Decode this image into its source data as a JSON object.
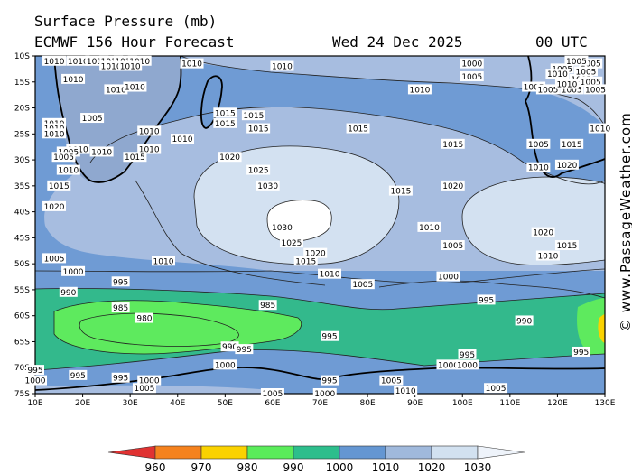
{
  "header": {
    "title": "Surface Pressure (mb)",
    "model": "ECMWF 156 Hour Forecast",
    "date": "Wed 24 Dec 2025",
    "time": "00 UTC"
  },
  "credit": "© www.PassageWeather.com",
  "axes": {
    "lat_labels": [
      "10S",
      "15S",
      "20S",
      "25S",
      "30S",
      "35S",
      "40S",
      "45S",
      "50S",
      "55S",
      "60S",
      "65S",
      "70S",
      "75S"
    ],
    "lon_labels": [
      "10E",
      "20E",
      "30E",
      "40E",
      "50E",
      "60E",
      "70E",
      "80E",
      "90E",
      "100E",
      "110E",
      "120E",
      "130E"
    ]
  },
  "legend": {
    "values": [
      "960",
      "970",
      "980",
      "990",
      "1000",
      "1010",
      "1020",
      "1030"
    ],
    "colors": [
      "#e03232",
      "#f5821e",
      "#fad200",
      "#5aec5a",
      "#2dbe8c",
      "#6496d2",
      "#a0b9dc",
      "#d2e1f0"
    ]
  },
  "isobars": [
    {
      "text": "1010",
      "lon": 14,
      "lat": 11
    },
    {
      "text": "1010",
      "lon": 19,
      "lat": 11
    },
    {
      "text": "1010",
      "lon": 23,
      "lat": 11
    },
    {
      "text": "1010",
      "lon": 26,
      "lat": 11
    },
    {
      "text": "1010",
      "lon": 29,
      "lat": 11
    },
    {
      "text": "1010",
      "lon": 32,
      "lat": 11
    },
    {
      "text": "1010",
      "lon": 26,
      "lat": 12
    },
    {
      "text": "1010",
      "lon": 30,
      "lat": 12
    },
    {
      "text": "1010",
      "lon": 43,
      "lat": 11.5
    },
    {
      "text": "1010",
      "lon": 18,
      "lat": 14.5
    },
    {
      "text": "1010",
      "lon": 27,
      "lat": 16.5
    },
    {
      "text": "1010",
      "lon": 31,
      "lat": 16
    },
    {
      "text": "1010",
      "lon": 62,
      "lat": 12
    },
    {
      "text": "1010",
      "lon": 91,
      "lat": 16.5
    },
    {
      "text": "1000",
      "lon": 102,
      "lat": 11.5
    },
    {
      "text": "1005",
      "lon": 102,
      "lat": 14
    },
    {
      "text": "1005",
      "lon": 115,
      "lat": 16
    },
    {
      "text": "1005",
      "lon": 118,
      "lat": 16.5
    },
    {
      "text": "1005",
      "lon": 121,
      "lat": 12.5
    },
    {
      "text": "1005",
      "lon": 123,
      "lat": 16.5
    },
    {
      "text": "1005",
      "lon": 125,
      "lat": 14.5
    },
    {
      "text": "1005",
      "lon": 127,
      "lat": 15
    },
    {
      "text": "1005",
      "lon": 126,
      "lat": 13
    },
    {
      "text": "1005",
      "lon": 128,
      "lat": 16.5
    },
    {
      "text": "1005",
      "lon": 127,
      "lat": 11.5
    },
    {
      "text": "1010",
      "lon": 120,
      "lat": 13.5
    },
    {
      "text": "1010",
      "lon": 122,
      "lat": 15.5
    },
    {
      "text": "1005",
      "lon": 124,
      "lat": 11
    },
    {
      "text": "1015",
      "lon": 50,
      "lat": 21
    },
    {
      "text": "1015",
      "lon": 50,
      "lat": 23
    },
    {
      "text": "1015",
      "lon": 56,
      "lat": 21.5
    },
    {
      "text": "1015",
      "lon": 57,
      "lat": 24
    },
    {
      "text": "1015",
      "lon": 78,
      "lat": 24
    },
    {
      "text": "1010",
      "lon": 41,
      "lat": 26
    },
    {
      "text": "1010",
      "lon": 14,
      "lat": 23
    },
    {
      "text": "1010",
      "lon": 14,
      "lat": 24
    },
    {
      "text": "1010",
      "lon": 14,
      "lat": 25
    },
    {
      "text": "1005",
      "lon": 22,
      "lat": 22
    },
    {
      "text": "1010",
      "lon": 34,
      "lat": 24.5
    },
    {
      "text": "1010",
      "lon": 19,
      "lat": 28
    },
    {
      "text": "1005",
      "lon": 17,
      "lat": 28.5
    },
    {
      "text": "1005",
      "lon": 16,
      "lat": 29.5
    },
    {
      "text": "1010",
      "lon": 24,
      "lat": 28.5
    },
    {
      "text": "1010",
      "lon": 34,
      "lat": 28
    },
    {
      "text": "1015",
      "lon": 31,
      "lat": 29.5
    },
    {
      "text": "1010",
      "lon": 17,
      "lat": 32
    },
    {
      "text": "1015",
      "lon": 15,
      "lat": 35
    },
    {
      "text": "1020",
      "lon": 14,
      "lat": 39
    },
    {
      "text": "1020",
      "lon": 51,
      "lat": 29.5
    },
    {
      "text": "1025",
      "lon": 57,
      "lat": 32
    },
    {
      "text": "1030",
      "lon": 59,
      "lat": 35
    },
    {
      "text": "1030",
      "lon": 62,
      "lat": 43
    },
    {
      "text": "1025",
      "lon": 64,
      "lat": 46
    },
    {
      "text": "1020",
      "lon": 69,
      "lat": 48
    },
    {
      "text": "1015",
      "lon": 67,
      "lat": 49.5
    },
    {
      "text": "1010",
      "lon": 72,
      "lat": 52
    },
    {
      "text": "1015",
      "lon": 87,
      "lat": 36
    },
    {
      "text": "1010",
      "lon": 93,
      "lat": 43
    },
    {
      "text": "1005",
      "lon": 98,
      "lat": 46.5
    },
    {
      "text": "1005",
      "lon": 79,
      "lat": 54
    },
    {
      "text": "1000",
      "lon": 97,
      "lat": 52.5
    },
    {
      "text": "1015",
      "lon": 98,
      "lat": 27
    },
    {
      "text": "1020",
      "lon": 98,
      "lat": 35
    },
    {
      "text": "1005",
      "lon": 116,
      "lat": 27
    },
    {
      "text": "1010",
      "lon": 116,
      "lat": 31.5
    },
    {
      "text": "1015",
      "lon": 123,
      "lat": 27
    },
    {
      "text": "1010",
      "lon": 129,
      "lat": 24
    },
    {
      "text": "1020",
      "lon": 122,
      "lat": 31
    },
    {
      "text": "1020",
      "lon": 117,
      "lat": 44
    },
    {
      "text": "1015",
      "lon": 122,
      "lat": 46.5
    },
    {
      "text": "1010",
      "lon": 118,
      "lat": 48.5
    },
    {
      "text": "1005",
      "lon": 14,
      "lat": 49
    },
    {
      "text": "1000",
      "lon": 18,
      "lat": 51.5
    },
    {
      "text": "1010",
      "lon": 37,
      "lat": 49.5
    },
    {
      "text": "995",
      "lon": 28,
      "lat": 53.5
    },
    {
      "text": "990",
      "lon": 17,
      "lat": 55.5
    },
    {
      "text": "985",
      "lon": 28,
      "lat": 58.5
    },
    {
      "text": "980",
      "lon": 33,
      "lat": 60.5
    },
    {
      "text": "985",
      "lon": 59,
      "lat": 58
    },
    {
      "text": "995",
      "lon": 105,
      "lat": 57
    },
    {
      "text": "990",
      "lon": 113,
      "lat": 61
    },
    {
      "text": "995",
      "lon": 72,
      "lat": 64
    },
    {
      "text": "990",
      "lon": 51,
      "lat": 66
    },
    {
      "text": "995",
      "lon": 54,
      "lat": 66.5
    },
    {
      "text": "1000",
      "lon": 50,
      "lat": 69.5
    },
    {
      "text": "995",
      "lon": 19,
      "lat": 71.5
    },
    {
      "text": "995",
      "lon": 28,
      "lat": 72
    },
    {
      "text": "1000",
      "lon": 34,
      "lat": 72.5
    },
    {
      "text": "1005",
      "lon": 33,
      "lat": 74
    },
    {
      "text": "1005",
      "lon": 60,
      "lat": 75
    },
    {
      "text": "1000",
      "lon": 71,
      "lat": 75
    },
    {
      "text": "995",
      "lon": 72,
      "lat": 72.5
    },
    {
      "text": "1005",
      "lon": 85,
      "lat": 72.5
    },
    {
      "text": "1010",
      "lon": 88,
      "lat": 74.5
    },
    {
      "text": "1000",
      "lon": 97,
      "lat": 69.5
    },
    {
      "text": "1000",
      "lon": 101,
      "lat": 69.5
    },
    {
      "text": "995",
      "lon": 101,
      "lat": 67.5
    },
    {
      "text": "1005",
      "lon": 107,
      "lat": 74
    },
    {
      "text": "995",
      "lon": 125,
      "lat": 67
    },
    {
      "text": "995",
      "lon": 10,
      "lat": 70.5
    },
    {
      "text": "1000",
      "lon": 10,
      "lat": 72.5
    }
  ]
}
